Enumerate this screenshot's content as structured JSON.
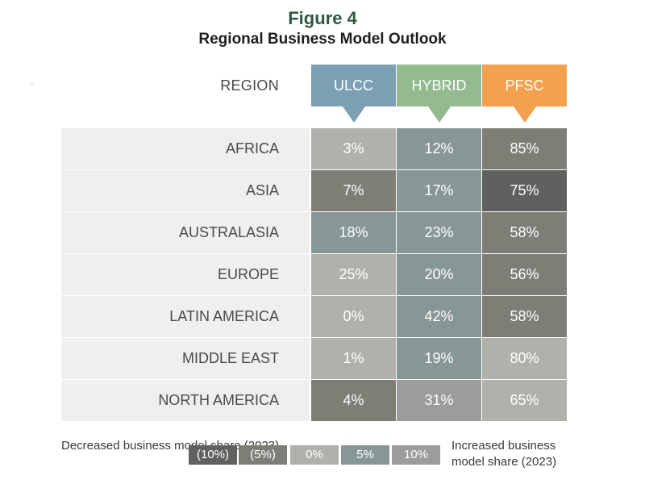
{
  "title": "Figure 4",
  "subtitle": "Regional Business Model Outlook",
  "chart_data": {
    "type": "table",
    "row_header": "REGION",
    "columns": [
      {
        "label": "ULCC",
        "color": "#7d9fb3"
      },
      {
        "label": "HYBRID",
        "color": "#93bb8f"
      },
      {
        "label": "PFSC",
        "color": "#f4a14f"
      }
    ],
    "rows": [
      {
        "region": "AFRICA",
        "values": [
          "3%",
          "12%",
          "85%"
        ],
        "change_class": [
          "0%",
          "5%",
          "(5%)"
        ]
      },
      {
        "region": "ASIA",
        "values": [
          "7%",
          "17%",
          "75%"
        ],
        "change_class": [
          "(5%)",
          "5%",
          "(10%)"
        ]
      },
      {
        "region": "AUSTRALASIA",
        "values": [
          "18%",
          "23%",
          "58%"
        ],
        "change_class": [
          "5%",
          "5%",
          "(5%)"
        ]
      },
      {
        "region": "EUROPE",
        "values": [
          "25%",
          "20%",
          "56%"
        ],
        "change_class": [
          "0%",
          "5%",
          "(5%)"
        ]
      },
      {
        "region": "LATIN AMERICA",
        "values": [
          "0%",
          "42%",
          "58%"
        ],
        "change_class": [
          "0%",
          "5%",
          "(5%)"
        ]
      },
      {
        "region": "MIDDLE EAST",
        "values": [
          "1%",
          "19%",
          "80%"
        ],
        "change_class": [
          "0%",
          "5%",
          "0%"
        ]
      },
      {
        "region": "NORTH AMERICA",
        "values": [
          "4%",
          "31%",
          "65%"
        ],
        "change_class": [
          "(5%)",
          "10%",
          "0%"
        ]
      }
    ],
    "legend": {
      "left_label": "Decreased business model share (2023)",
      "right_label": "Increased business model share (2023)",
      "items": [
        {
          "label": "(10%)",
          "color": "#5f615e"
        },
        {
          "label": "(5%)",
          "color": "#7f7e76"
        },
        {
          "label": "0%",
          "color": "#b1b1ac"
        },
        {
          "label": "5%",
          "color": "#879795"
        },
        {
          "label": "10%",
          "color": "#9c9c9c"
        }
      ]
    }
  }
}
